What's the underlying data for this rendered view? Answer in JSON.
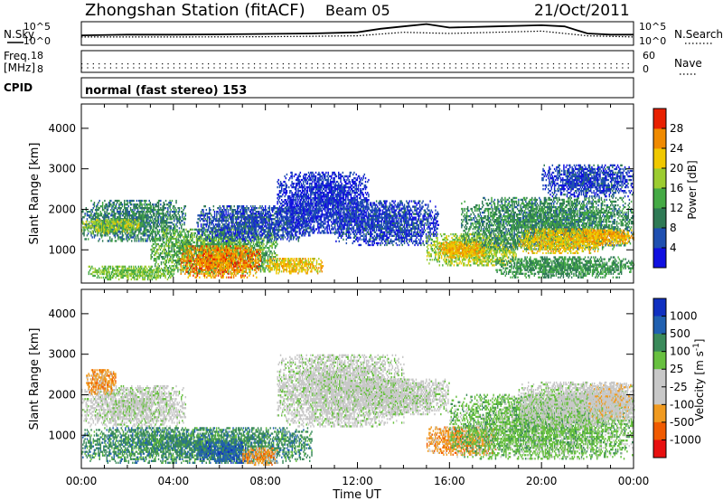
{
  "header": {
    "station": "Zhongshan Station (fitACF)",
    "beam": "Beam 05",
    "date": "21/Oct/2011"
  },
  "summary_panels": {
    "nsky_label": "N.Sky",
    "nsearch_label": "N.Search",
    "nsky_ticks": [
      "10^5",
      "10^0"
    ],
    "nsearch_ticks": [
      "10^5",
      "10^0"
    ],
    "freq_label_1": "Freq.",
    "freq_label_2": "[MHz]",
    "freq_ticks": [
      "18",
      "8"
    ],
    "nave_label": "Nave",
    "nave_ticks": [
      "60",
      "0"
    ],
    "cpid_label": "CPID",
    "cpid_text": "normal (fast stereo) 153"
  },
  "x_axis": {
    "label": "Time UT",
    "ticks": [
      "00:00",
      "04:00",
      "08:00",
      "12:00",
      "16:00",
      "20:00",
      "00:00"
    ]
  },
  "colors": {
    "power": [
      "#1010e0",
      "#1f4fb0",
      "#2f7a55",
      "#45aa45",
      "#9ccc30",
      "#f0c800",
      "#f08a00",
      "#e82000"
    ],
    "velocity": [
      "#e81010",
      "#f05a00",
      "#f09a20",
      "#c8c8c8",
      "#c8c8c8",
      "#68c040",
      "#3a8a5a",
      "#2060b0",
      "#1030c0"
    ],
    "gray": "#c0c0c0"
  },
  "chart_data": [
    {
      "type": "line",
      "title": "N.Sky / N.Search",
      "x_range": [
        0,
        24
      ],
      "ylim_note": "log scale 10^0 to 10^5",
      "series": [
        {
          "name": "N.Sky",
          "x": [
            0,
            2,
            4,
            6,
            8,
            10,
            12,
            13,
            14,
            15,
            16,
            18,
            20,
            21,
            22,
            23,
            24
          ],
          "y": [
            0.42,
            0.45,
            0.45,
            0.46,
            0.48,
            0.5,
            0.55,
            0.7,
            0.8,
            0.9,
            0.75,
            0.8,
            0.85,
            0.8,
            0.5,
            0.45,
            0.45
          ]
        },
        {
          "name": "N.Search",
          "x": [
            0,
            4,
            8,
            12,
            14,
            16,
            18,
            20,
            22,
            24
          ],
          "y": [
            0.35,
            0.35,
            0.36,
            0.4,
            0.55,
            0.5,
            0.55,
            0.6,
            0.4,
            0.35
          ]
        }
      ]
    },
    {
      "type": "scatter",
      "title": "Freq / Nave",
      "x_range": [
        0,
        24
      ],
      "series": [
        {
          "name": "Freq [MHz]",
          "ylim": [
            8,
            18
          ],
          "level": 12
        },
        {
          "name": "Nave",
          "ylim": [
            0,
            60
          ],
          "level": 25
        }
      ]
    },
    {
      "type": "heatmap",
      "title": "Power",
      "xlabel": "Time UT",
      "ylabel": "Slant Range [km]",
      "x_range": [
        0,
        24
      ],
      "ylim": [
        180,
        4600
      ],
      "y_ticks": [
        1000,
        2000,
        3000,
        4000
      ],
      "colorbar": {
        "label": "Power [dB]",
        "ticks": [
          4,
          8,
          12,
          16,
          20,
          24,
          28
        ],
        "range": [
          0,
          32
        ]
      },
      "blobs": [
        {
          "t0": 0.0,
          "t1": 4.5,
          "r0": 1200,
          "r1": 2200,
          "v": 10
        },
        {
          "t0": 0.0,
          "t1": 2.5,
          "r0": 1400,
          "r1": 1750,
          "v": 18
        },
        {
          "t0": 3.0,
          "t1": 8.5,
          "r0": 400,
          "r1": 1500,
          "v": 14
        },
        {
          "t0": 4.3,
          "t1": 7.8,
          "r0": 300,
          "r1": 1100,
          "v": 26
        },
        {
          "t0": 0.3,
          "t1": 4.0,
          "r0": 250,
          "r1": 600,
          "v": 16
        },
        {
          "t0": 8.0,
          "t1": 10.5,
          "r0": 400,
          "r1": 800,
          "v": 22
        },
        {
          "t0": 5.0,
          "t1": 10.0,
          "r0": 1200,
          "r1": 2100,
          "v": 6
        },
        {
          "t0": 8.5,
          "t1": 12.5,
          "r0": 1400,
          "r1": 2900,
          "v": 4
        },
        {
          "t0": 11.0,
          "t1": 15.5,
          "r0": 1100,
          "r1": 2200,
          "v": 5
        },
        {
          "t0": 15.0,
          "t1": 19.0,
          "r0": 600,
          "r1": 1400,
          "v": 18
        },
        {
          "t0": 15.5,
          "t1": 17.5,
          "r0": 800,
          "r1": 1200,
          "v": 24
        },
        {
          "t0": 16.5,
          "t1": 24.0,
          "r0": 1000,
          "r1": 2300,
          "v": 11
        },
        {
          "t0": 19.0,
          "t1": 22.5,
          "r0": 900,
          "r1": 1500,
          "v": 22
        },
        {
          "t0": 18.0,
          "t1": 24.0,
          "r0": 300,
          "r1": 800,
          "v": 12
        },
        {
          "t0": 21.5,
          "t1": 24.0,
          "r0": 1100,
          "r1": 1500,
          "v": 24
        },
        {
          "t0": 20.0,
          "t1": 24.0,
          "r0": 2300,
          "r1": 3100,
          "v": 5
        }
      ]
    },
    {
      "type": "heatmap",
      "title": "Velocity",
      "xlabel": "Time UT",
      "ylabel": "Slant Range [km]",
      "x_range": [
        0,
        24
      ],
      "ylim": [
        180,
        4600
      ],
      "y_ticks": [
        1000,
        2000,
        3000,
        4000
      ],
      "colorbar": {
        "label": "Velocity [m s-1]",
        "ticks": [
          1000,
          500,
          100,
          25,
          -25,
          -100,
          -500,
          -1000
        ]
      },
      "blobs": [
        {
          "t0": 0.0,
          "t1": 4.5,
          "r0": 1200,
          "r1": 2200,
          "v": 0
        },
        {
          "t0": 0.0,
          "t1": 10.0,
          "r0": 300,
          "r1": 1200,
          "v": 2
        },
        {
          "t0": 5.0,
          "t1": 7.5,
          "r0": 300,
          "r1": 800,
          "v": 3
        },
        {
          "t0": 7.0,
          "t1": 8.5,
          "r0": 250,
          "r1": 700,
          "v": -2
        },
        {
          "t0": 8.5,
          "t1": 14.0,
          "r0": 1200,
          "r1": 3000,
          "v": 0
        },
        {
          "t0": 0.2,
          "t1": 1.5,
          "r0": 2000,
          "r1": 2600,
          "v": -2
        },
        {
          "t0": 15.0,
          "t1": 18.0,
          "r0": 500,
          "r1": 1200,
          "v": -2
        },
        {
          "t0": 16.0,
          "t1": 24.0,
          "r0": 400,
          "r1": 2000,
          "v": 1
        },
        {
          "t0": 19.0,
          "t1": 24.0,
          "r0": 1200,
          "r1": 2300,
          "v": 0
        },
        {
          "t0": 22.0,
          "t1": 24.0,
          "r0": 1400,
          "r1": 2300,
          "v": -1
        },
        {
          "t0": 12.0,
          "t1": 16.0,
          "r0": 1500,
          "r1": 2400,
          "v": 0
        }
      ]
    }
  ]
}
